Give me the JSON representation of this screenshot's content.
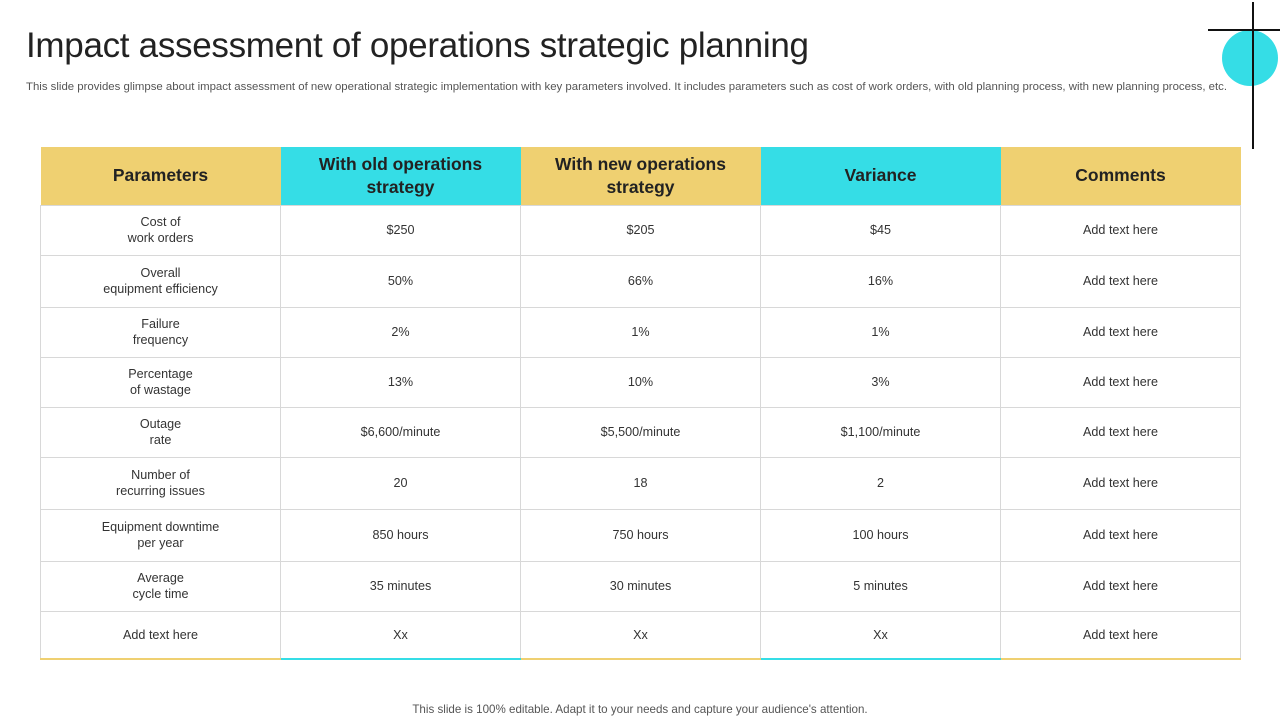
{
  "title": "Impact assessment of operations strategic planning",
  "subtitle": "This slide provides glimpse about impact assessment of new operational strategic implementation with key parameters involved. It includes parameters such as cost of work orders, with old planning process, with new planning process, etc.",
  "colors": {
    "yellow": "#efd071",
    "cyan": "#35dde6"
  },
  "table": {
    "headers": [
      "Parameters",
      "With old operations strategy",
      "With new operations strategy",
      "Variance",
      "Comments"
    ],
    "rows": [
      [
        "Cost of\nwork orders",
        "$250",
        "$205",
        "$45",
        "Add text here"
      ],
      [
        "Overall\nequipment efficiency",
        "50%",
        "66%",
        "16%",
        "Add text here"
      ],
      [
        "Failure\nfrequency",
        "2%",
        "1%",
        "1%",
        "Add text here"
      ],
      [
        "Percentage\nof wastage",
        "13%",
        "10%",
        "3%",
        "Add text here"
      ],
      [
        "Outage\nrate",
        "$6,600/minute",
        "$5,500/minute",
        "$1,100/minute",
        "Add text here"
      ],
      [
        "Number  of\nrecurring issues",
        "20",
        "18",
        "2",
        "Add text here"
      ],
      [
        "Equipment downtime\nper year",
        "850 hours",
        "750 hours",
        "100 hours",
        "Add text here"
      ],
      [
        "Average\ncycle time",
        "35 minutes",
        "30 minutes",
        "5 minutes",
        "Add text here"
      ],
      [
        "Add text here",
        "Xx",
        "Xx",
        "Xx",
        "Add text here"
      ]
    ]
  },
  "footer": "This slide is 100% editable. Adapt it to your needs and capture your audience's attention."
}
